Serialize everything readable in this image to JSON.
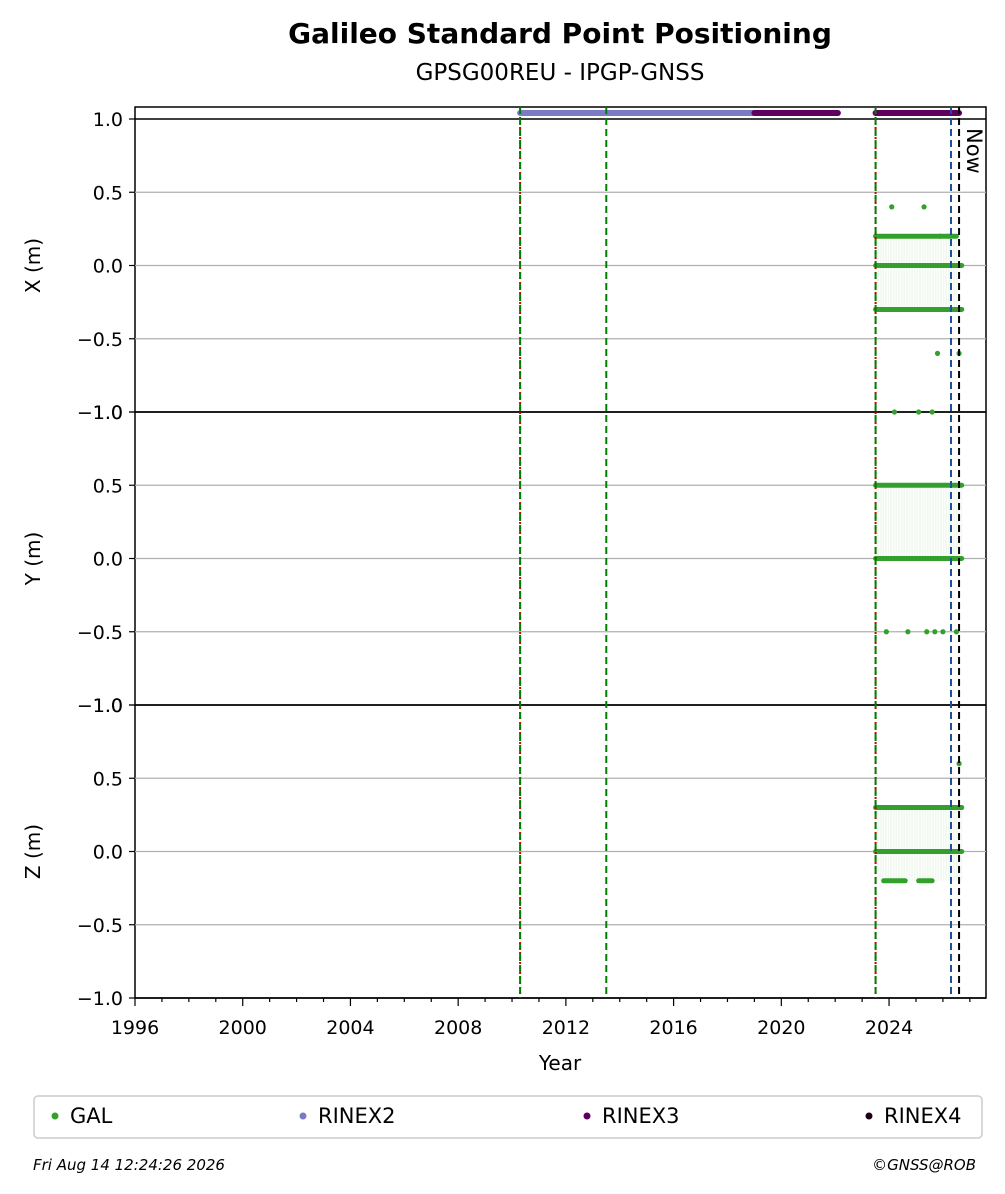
{
  "chart_data": {
    "type": "scatter",
    "title": "Galileo Standard Point Positioning",
    "subtitle": "GPSG00REU - IPGP-GNSS",
    "xlabel": "Year",
    "xlim": [
      1996,
      2027.6
    ],
    "x_ticks": [
      "1996",
      "2000",
      "2004",
      "2008",
      "2012",
      "2016",
      "2020",
      "2024"
    ],
    "grid": true,
    "panels": [
      {
        "ylabel": "X (m)",
        "ylim": [
          -1.0,
          1.0
        ],
        "y_ticks": [
          "1.0",
          "0.5",
          "0.0",
          "−0.5",
          "−1.0"
        ],
        "levels": [
          {
            "y": 0.2,
            "x_start": 2023.5,
            "x_end": 2026.5,
            "series": "GAL"
          },
          {
            "y": 0.0,
            "x_start": 2023.5,
            "x_end": 2026.7,
            "series": "GAL"
          },
          {
            "y": -0.3,
            "x_start": 2023.5,
            "x_end": 2026.7,
            "series": "GAL"
          }
        ],
        "points": [
          [
            2024.1,
            0.4
          ],
          [
            2025.3,
            0.4
          ],
          [
            2025.8,
            -0.6
          ],
          [
            2026.6,
            -0.6
          ],
          [
            2025.9,
            0.2
          ],
          [
            2026.2,
            0.2
          ]
        ]
      },
      {
        "ylabel": "Y (m)",
        "ylim": [
          -1.0,
          1.0
        ],
        "y_ticks": [
          "1.0",
          "0.5",
          "0.0",
          "−0.5",
          "−1.0"
        ],
        "levels": [
          {
            "y": 0.5,
            "x_start": 2023.5,
            "x_end": 2026.7,
            "series": "GAL"
          },
          {
            "y": 0.0,
            "x_start": 2023.5,
            "x_end": 2026.7,
            "series": "GAL"
          }
        ],
        "points": [
          [
            2023.9,
            -0.5
          ],
          [
            2024.7,
            -0.5
          ],
          [
            2025.4,
            -0.5
          ],
          [
            2025.7,
            -0.5
          ],
          [
            2026.0,
            -0.5
          ],
          [
            2026.5,
            -0.5
          ],
          [
            2024.2,
            1.0
          ],
          [
            2025.1,
            1.0
          ],
          [
            2025.6,
            1.0
          ]
        ]
      },
      {
        "ylabel": "Z (m)",
        "ylim": [
          -1.0,
          1.0
        ],
        "y_ticks": [
          "1.0",
          "0.5",
          "0.0",
          "−0.5",
          "−1.0"
        ],
        "levels": [
          {
            "y": 0.3,
            "x_start": 2023.5,
            "x_end": 2026.7,
            "series": "GAL"
          },
          {
            "y": 0.0,
            "x_start": 2023.5,
            "x_end": 2026.7,
            "series": "GAL"
          },
          {
            "y": -0.2,
            "x_start": 2023.8,
            "x_end": 2024.6,
            "series": "GAL"
          },
          {
            "y": -0.2,
            "x_start": 2025.1,
            "x_end": 2025.6,
            "series": "GAL"
          }
        ],
        "points": [
          [
            2026.6,
            0.6
          ]
        ]
      }
    ],
    "availability": [
      {
        "series": "RINEX2",
        "x_start": 2010.3,
        "x_end": 2019.0
      },
      {
        "series": "RINEX3",
        "x_start": 2019.0,
        "x_end": 2022.1
      },
      {
        "series": "RINEX3",
        "x_start": 2023.5,
        "x_end": 2026.6
      }
    ],
    "vlines": [
      {
        "x": 2010.3,
        "color": "#cc0000",
        "style": "dotted"
      },
      {
        "x": 2010.3,
        "color": "#008000",
        "style": "dashed"
      },
      {
        "x": 2013.5,
        "color": "#008000",
        "style": "dashed"
      },
      {
        "x": 2023.5,
        "color": "#cc0000",
        "style": "dotted"
      },
      {
        "x": 2023.5,
        "color": "#008000",
        "style": "dashed"
      },
      {
        "x": 2026.3,
        "color": "#1f4e9e",
        "style": "dashed"
      },
      {
        "x": 2026.6,
        "color": "#000000",
        "style": "dashed",
        "label": "Now"
      }
    ],
    "legend": {
      "placement": "bottom",
      "items": [
        {
          "name": "GAL",
          "color": "#33a02c"
        },
        {
          "name": "RINEX2",
          "color": "#7b7bc4"
        },
        {
          "name": "RINEX3",
          "color": "#5e005e"
        },
        {
          "name": "RINEX4",
          "color": "#200018"
        }
      ]
    },
    "footer_left": "Fri Aug 14 12:24:26 2026",
    "footer_right": "©GNSS@ROB"
  }
}
